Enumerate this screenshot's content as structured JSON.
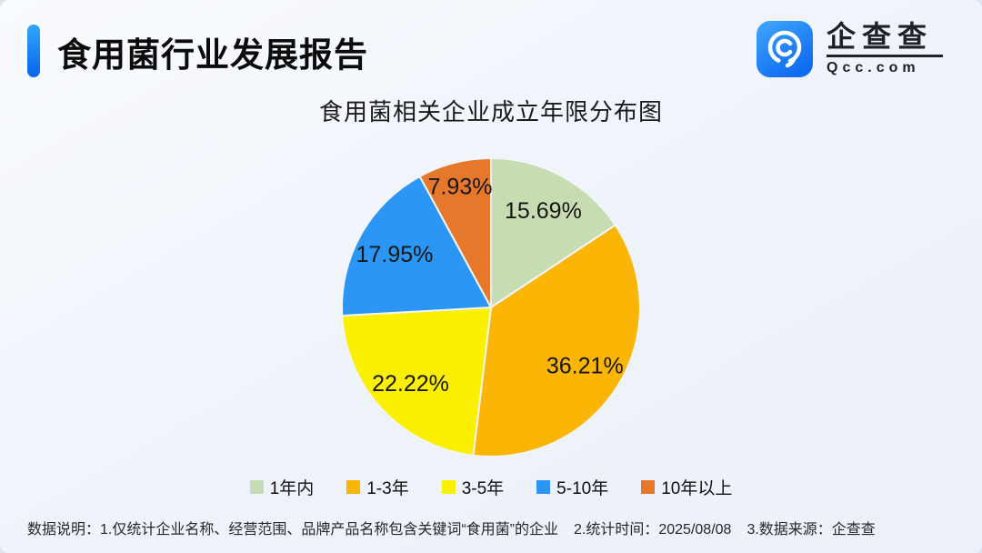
{
  "header": {
    "title": "食用菌行业发展报告",
    "logo": {
      "brand": "企查查",
      "domain": "Qcc.com"
    }
  },
  "chart_data": {
    "type": "pie",
    "title": "食用菌相关企业成立年限分布图",
    "value_unit": "percent",
    "start_angle_deg": 0,
    "direction": "clockwise",
    "legend_position": "bottom",
    "label_format": "value%",
    "slices": [
      {
        "label": "1年内",
        "value": 15.69,
        "display": "15.69%",
        "color": "#C8DCB2"
      },
      {
        "label": "1-3年",
        "value": 36.21,
        "display": "36.21%",
        "color": "#FBB505"
      },
      {
        "label": "3-5年",
        "value": 22.22,
        "display": "22.22%",
        "color": "#FCF001"
      },
      {
        "label": "5-10年",
        "value": 17.95,
        "display": "17.95%",
        "color": "#2B96F6"
      },
      {
        "label": "10年以上",
        "value": 7.93,
        "display": "7.93%",
        "color": "#E6782B"
      }
    ]
  },
  "footer": {
    "notes": [
      "数据说明：1.仅统计企业名称、经营范围、品牌产品名称包含关键词“食用菌”的企业",
      "2.统计时间：2025/08/08",
      "3.数据来源：企查查"
    ]
  },
  "colors": {
    "accent_gradient_top": "#31A6F8",
    "accent_gradient_bottom": "#0765EA",
    "background": "#EFF3FB",
    "text_primary": "#0B0B0C"
  }
}
